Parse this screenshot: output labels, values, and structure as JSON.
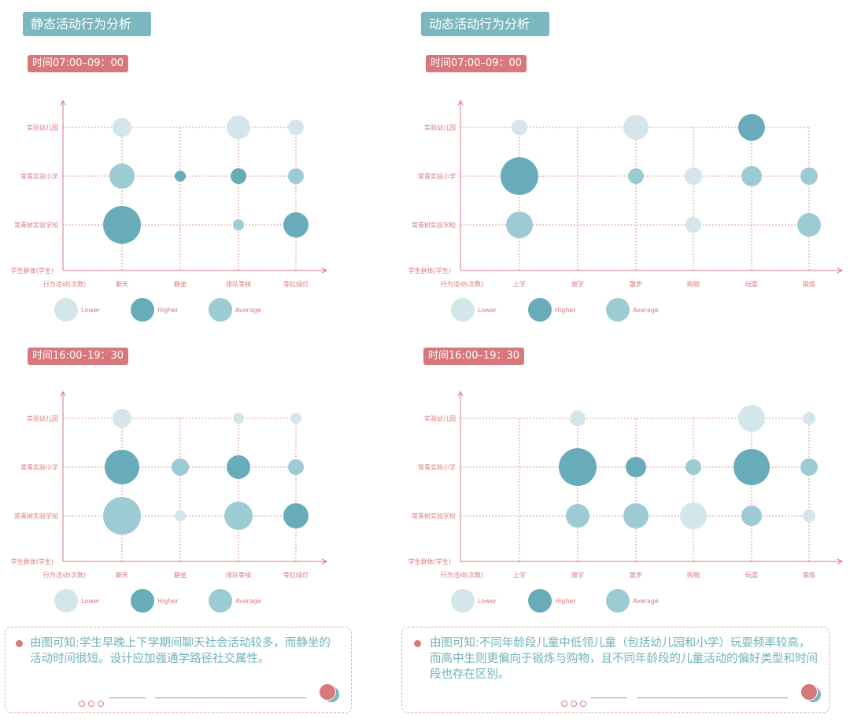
{
  "titles": {
    "left": "静态活动行为分析",
    "right": "动态活动行为分析"
  },
  "time": {
    "morning": "时间07:00–09：00",
    "evening": "时间16:00–19：30"
  },
  "axis": {
    "y_title": "学生群体(学生)",
    "x_title": "行为活动(次数)"
  },
  "legend": {
    "lower": "Lower",
    "higher": "Higher",
    "average": "Average"
  },
  "colors": {
    "lower": "#d3e6ea",
    "average": "#9ccbd3",
    "higher": "#68acb9",
    "grid": "#d9787c",
    "text": "#d9787c"
  },
  "notes": {
    "left": "由图可知:学生早晚上下学期间聊天社会活动较多，而静坐的活动时间很短。设计应加强通学路径社交属性。",
    "right": "由图可知:不同年龄段儿童中低领儿童（包括幼儿园和小学）玩耍频率较高，而高中生则更偏向于锻炼与购物，且不同年龄段的儿童活动的偏好类型和时间段也存在区别。"
  },
  "chart_data": [
    {
      "type": "scatter",
      "panel": "静态活动行为分析 时间07:00–09：00",
      "categories": [
        "聊天",
        "静坐",
        "排队等候",
        "等红绿灯"
      ],
      "groups": [
        "实验幼儿园",
        "常青实验小学",
        "常青树实验学校"
      ],
      "bubbles": [
        {
          "x": "聊天",
          "y": "实验幼儿园",
          "size": 12,
          "level": "lower"
        },
        {
          "x": "排队等候",
          "y": "实验幼儿园",
          "size": 15,
          "level": "lower"
        },
        {
          "x": "等红绿灯",
          "y": "实验幼儿园",
          "size": 10,
          "level": "lower"
        },
        {
          "x": "聊天",
          "y": "常青实验小学",
          "size": 16,
          "level": "average"
        },
        {
          "x": "静坐",
          "y": "常青实验小学",
          "size": 7,
          "level": "higher"
        },
        {
          "x": "排队等候",
          "y": "常青实验小学",
          "size": 10,
          "level": "higher"
        },
        {
          "x": "等红绿灯",
          "y": "常青实验小学",
          "size": 10,
          "level": "average"
        },
        {
          "x": "聊天",
          "y": "常青树实验学校",
          "size": 24,
          "level": "higher"
        },
        {
          "x": "排队等候",
          "y": "常青树实验学校",
          "size": 7,
          "level": "average"
        },
        {
          "x": "等红绿灯",
          "y": "常青树实验学校",
          "size": 16,
          "level": "higher"
        }
      ]
    },
    {
      "type": "scatter",
      "panel": "动态活动行为分析 时间07:00–09：00",
      "categories": [
        "上学",
        "放学",
        "散步",
        "购物",
        "玩耍",
        "锻炼"
      ],
      "groups": [
        "实验幼儿园",
        "常青实验小学",
        "常青树实验学校"
      ],
      "bubbles": [
        {
          "x": "上学",
          "y": "实验幼儿园",
          "size": 10,
          "level": "lower"
        },
        {
          "x": "散步",
          "y": "实验幼儿园",
          "size": 16,
          "level": "lower"
        },
        {
          "x": "玩耍",
          "y": "实验幼儿园",
          "size": 17,
          "level": "higher"
        },
        {
          "x": "上学",
          "y": "常青实验小学",
          "size": 24,
          "level": "higher"
        },
        {
          "x": "散步",
          "y": "常青实验小学",
          "size": 10,
          "level": "average"
        },
        {
          "x": "购物",
          "y": "常青实验小学",
          "size": 11,
          "level": "lower"
        },
        {
          "x": "玩耍",
          "y": "常青实验小学",
          "size": 13,
          "level": "average"
        },
        {
          "x": "锻炼",
          "y": "常青实验小学",
          "size": 11,
          "level": "average"
        },
        {
          "x": "上学",
          "y": "常青树实验学校",
          "size": 17,
          "level": "average"
        },
        {
          "x": "购物",
          "y": "常青树实验学校",
          "size": 10,
          "level": "lower"
        },
        {
          "x": "锻炼",
          "y": "常青树实验学校",
          "size": 15,
          "level": "average"
        }
      ]
    },
    {
      "type": "scatter",
      "panel": "静态活动行为分析 时间16:00–19：30",
      "categories": [
        "聊天",
        "静坐",
        "排队等候",
        "等红绿灯"
      ],
      "groups": [
        "实验幼儿园",
        "常青实验小学",
        "常青树实验学校"
      ],
      "bubbles": [
        {
          "x": "聊天",
          "y": "实验幼儿园",
          "size": 12,
          "level": "lower"
        },
        {
          "x": "排队等候",
          "y": "实验幼儿园",
          "size": 7,
          "level": "lower"
        },
        {
          "x": "等红绿灯",
          "y": "实验幼儿园",
          "size": 7,
          "level": "lower"
        },
        {
          "x": "聊天",
          "y": "常青实验小学",
          "size": 22,
          "level": "higher"
        },
        {
          "x": "静坐",
          "y": "常青实验小学",
          "size": 11,
          "level": "average"
        },
        {
          "x": "排队等候",
          "y": "常青实验小学",
          "size": 15,
          "level": "higher"
        },
        {
          "x": "等红绿灯",
          "y": "常青实验小学",
          "size": 10,
          "level": "average"
        },
        {
          "x": "聊天",
          "y": "常青树实验学校",
          "size": 24,
          "level": "average"
        },
        {
          "x": "静坐",
          "y": "常青树实验学校",
          "size": 7,
          "level": "lower"
        },
        {
          "x": "排队等候",
          "y": "常青树实验学校",
          "size": 18,
          "level": "average"
        },
        {
          "x": "等红绿灯",
          "y": "常青树实验学校",
          "size": 16,
          "level": "higher"
        }
      ]
    },
    {
      "type": "scatter",
      "panel": "动态活动行为分析 时间16:00–19：30",
      "categories": [
        "上学",
        "放学",
        "散步",
        "购物",
        "玩耍",
        "锻炼"
      ],
      "groups": [
        "实验幼儿园",
        "常青实验小学",
        "常青树实验学校"
      ],
      "bubbles": [
        {
          "x": "放学",
          "y": "实验幼儿园",
          "size": 10,
          "level": "lower"
        },
        {
          "x": "玩耍",
          "y": "实验幼儿园",
          "size": 17,
          "level": "lower"
        },
        {
          "x": "锻炼",
          "y": "实验幼儿园",
          "size": 8,
          "level": "lower"
        },
        {
          "x": "放学",
          "y": "常青实验小学",
          "size": 24,
          "level": "higher"
        },
        {
          "x": "散步",
          "y": "常青实验小学",
          "size": 13,
          "level": "higher"
        },
        {
          "x": "购物",
          "y": "常青实验小学",
          "size": 10,
          "level": "average"
        },
        {
          "x": "玩耍",
          "y": "常青实验小学",
          "size": 23,
          "level": "higher"
        },
        {
          "x": "锻炼",
          "y": "常青实验小学",
          "size": 11,
          "level": "average"
        },
        {
          "x": "放学",
          "y": "常青树实验学校",
          "size": 15,
          "level": "average"
        },
        {
          "x": "散步",
          "y": "常青树实验学校",
          "size": 16,
          "level": "average"
        },
        {
          "x": "购物",
          "y": "常青树实验学校",
          "size": 17,
          "level": "lower"
        },
        {
          "x": "玩耍",
          "y": "常青树实验学校",
          "size": 13,
          "level": "average"
        },
        {
          "x": "锻炼",
          "y": "常青树实验学校",
          "size": 8,
          "level": "lower"
        }
      ]
    }
  ]
}
